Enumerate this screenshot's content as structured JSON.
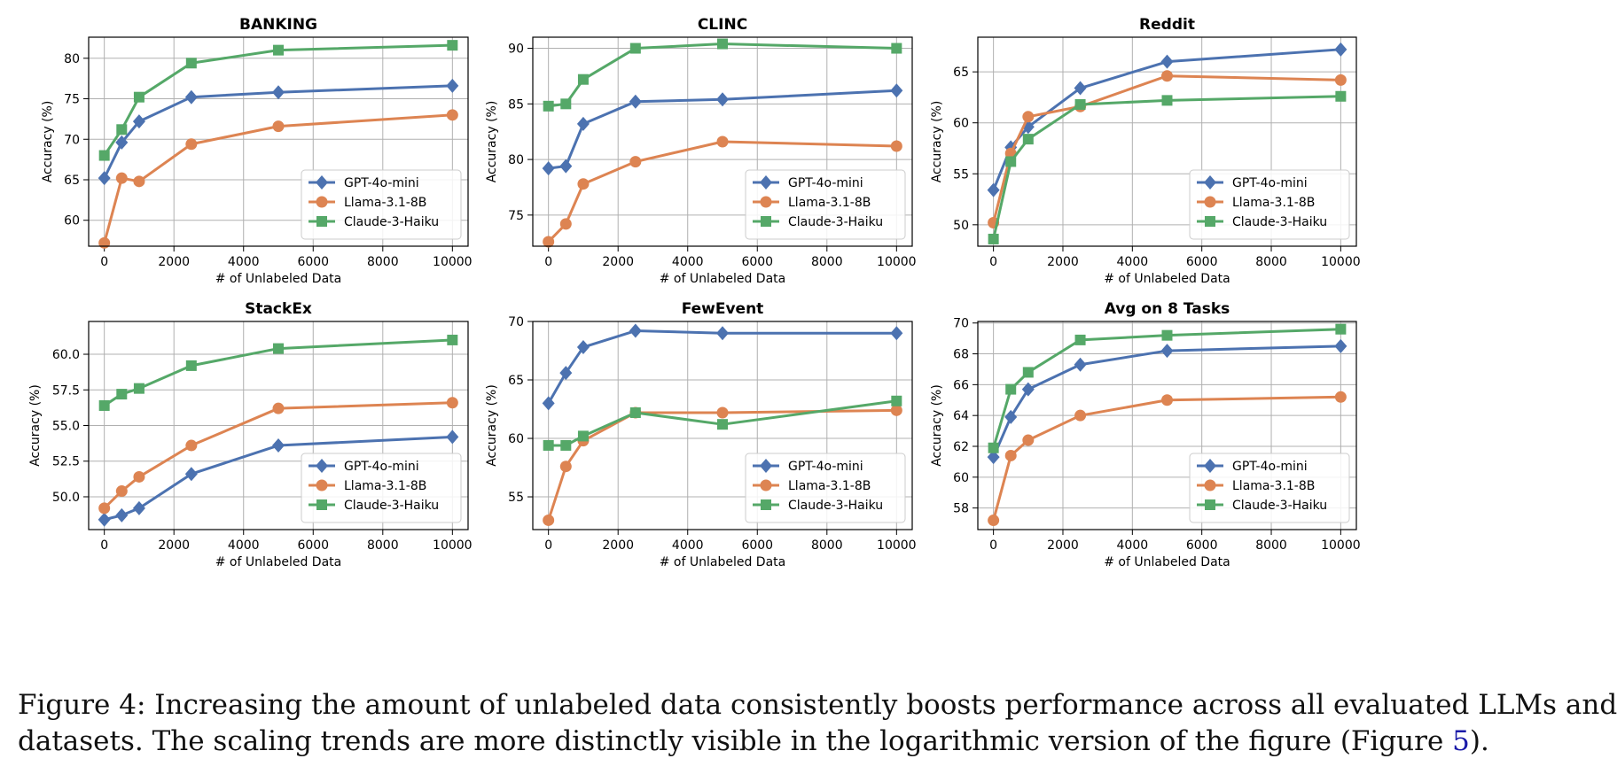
{
  "series_style": [
    {
      "name": "GPT-4o-mini",
      "color": "#4c72b0",
      "marker": "diamond"
    },
    {
      "name": "Llama-3.1-8B",
      "color": "#dd8452",
      "marker": "circle"
    },
    {
      "name": "Claude-3-Haiku",
      "color": "#55a868",
      "marker": "square"
    }
  ],
  "caption": {
    "line1": "Figure 4: Increasing the amount of unlabeled data consistently boosts performance across all evaluated LLMs and",
    "line2_pre": "datasets. The scaling trends are more distinctly visible in the logarithmic version of the figure (Figure ",
    "line2_ref": "5",
    "line2_post": ")."
  },
  "chart_data": [
    {
      "type": "line",
      "title": "BANKING",
      "xlabel": "# of Unlabeled Data",
      "ylabel": "Accuracy (%)",
      "x": [
        0,
        500,
        1000,
        2500,
        5000,
        10000
      ],
      "xlim": [
        -450,
        10450
      ],
      "ylim": [
        56.8,
        82.6
      ],
      "xticks": [
        0,
        2000,
        4000,
        6000,
        8000,
        10000
      ],
      "yticks": [
        60,
        65,
        70,
        75,
        80
      ],
      "ytick_labels": [
        "60",
        "65",
        "70",
        "75",
        "80"
      ],
      "grid": true,
      "legend": "lower-right",
      "series": [
        {
          "name": "GPT-4o-mini",
          "values": [
            65.2,
            69.6,
            72.2,
            75.2,
            75.8,
            76.6
          ]
        },
        {
          "name": "Llama-3.1-8B",
          "values": [
            57.2,
            65.2,
            64.8,
            69.4,
            71.6,
            73.0
          ]
        },
        {
          "name": "Claude-3-Haiku",
          "values": [
            68.0,
            71.2,
            75.2,
            79.4,
            81.0,
            81.6
          ]
        }
      ]
    },
    {
      "type": "line",
      "title": "CLINC",
      "xlabel": "# of Unlabeled Data",
      "ylabel": "Accuracy (%)",
      "x": [
        0,
        500,
        1000,
        2500,
        5000,
        10000
      ],
      "xlim": [
        -450,
        10450
      ],
      "ylim": [
        72.2,
        91.0
      ],
      "xticks": [
        0,
        2000,
        4000,
        6000,
        8000,
        10000
      ],
      "yticks": [
        75,
        80,
        85,
        90
      ],
      "ytick_labels": [
        "75",
        "80",
        "85",
        "90"
      ],
      "grid": true,
      "legend": "lower-right",
      "series": [
        {
          "name": "GPT-4o-mini",
          "values": [
            79.2,
            79.4,
            83.2,
            85.2,
            85.4,
            86.2
          ]
        },
        {
          "name": "Llama-3.1-8B",
          "values": [
            72.6,
            74.2,
            77.8,
            79.8,
            81.6,
            81.2
          ]
        },
        {
          "name": "Claude-3-Haiku",
          "values": [
            84.8,
            85.0,
            87.2,
            90.0,
            90.4,
            90.0
          ]
        }
      ]
    },
    {
      "type": "line",
      "title": "Reddit",
      "xlabel": "# of Unlabeled Data",
      "ylabel": "Accuracy (%)",
      "x": [
        0,
        500,
        1000,
        2500,
        5000,
        10000
      ],
      "xlim": [
        -450,
        10450
      ],
      "ylim": [
        47.9,
        68.4
      ],
      "xticks": [
        0,
        2000,
        4000,
        6000,
        8000,
        10000
      ],
      "yticks": [
        50,
        55,
        60,
        65
      ],
      "ytick_labels": [
        "50",
        "55",
        "60",
        "65"
      ],
      "grid": true,
      "legend": "lower-right",
      "series": [
        {
          "name": "GPT-4o-mini",
          "values": [
            53.4,
            57.6,
            59.6,
            63.4,
            66.0,
            67.2
          ]
        },
        {
          "name": "Llama-3.1-8B",
          "values": [
            50.2,
            57.0,
            60.6,
            61.6,
            64.6,
            64.2
          ]
        },
        {
          "name": "Claude-3-Haiku",
          "values": [
            48.6,
            56.2,
            58.4,
            61.8,
            62.2,
            62.6
          ]
        }
      ]
    },
    {
      "type": "line",
      "title": "StackEx",
      "xlabel": "# of Unlabeled Data",
      "ylabel": "Accuracy (%)",
      "x": [
        0,
        500,
        1000,
        2500,
        5000,
        10000
      ],
      "xlim": [
        -450,
        10450
      ],
      "ylim": [
        47.7,
        62.3
      ],
      "xticks": [
        0,
        2000,
        4000,
        6000,
        8000,
        10000
      ],
      "yticks": [
        50.0,
        52.5,
        55.0,
        57.5,
        60.0
      ],
      "ytick_labels": [
        "50.0",
        "52.5",
        "55.0",
        "57.5",
        "60.0"
      ],
      "grid": true,
      "legend": "lower-right",
      "series": [
        {
          "name": "GPT-4o-mini",
          "values": [
            48.4,
            48.7,
            49.2,
            51.6,
            53.6,
            54.2
          ]
        },
        {
          "name": "Llama-3.1-8B",
          "values": [
            49.2,
            50.4,
            51.4,
            53.6,
            56.2,
            56.6
          ]
        },
        {
          "name": "Claude-3-Haiku",
          "values": [
            56.4,
            57.2,
            57.6,
            59.2,
            60.4,
            61.0
          ]
        }
      ]
    },
    {
      "type": "line",
      "title": "FewEvent",
      "xlabel": "# of Unlabeled Data",
      "ylabel": "Accuracy (%)",
      "x": [
        0,
        500,
        1000,
        2500,
        5000,
        10000
      ],
      "xlim": [
        -450,
        10450
      ],
      "ylim": [
        52.2,
        70.0
      ],
      "xticks": [
        0,
        2000,
        4000,
        6000,
        8000,
        10000
      ],
      "yticks": [
        55,
        60,
        65,
        70
      ],
      "ytick_labels": [
        "55",
        "60",
        "65",
        "70"
      ],
      "grid": true,
      "legend": "lower-right",
      "series": [
        {
          "name": "GPT-4o-mini",
          "values": [
            63.0,
            65.6,
            67.8,
            69.2,
            69.0,
            69.0
          ]
        },
        {
          "name": "Llama-3.1-8B",
          "values": [
            53.0,
            57.6,
            59.8,
            62.2,
            62.2,
            62.4
          ]
        },
        {
          "name": "Claude-3-Haiku",
          "values": [
            59.4,
            59.4,
            60.2,
            62.2,
            61.2,
            63.2
          ]
        }
      ]
    },
    {
      "type": "line",
      "title": "Avg on 8 Tasks",
      "xlabel": "# of Unlabeled Data",
      "ylabel": "Accuracy (%)",
      "x": [
        0,
        500,
        1000,
        2500,
        5000,
        10000
      ],
      "xlim": [
        -450,
        10450
      ],
      "ylim": [
        56.6,
        70.1
      ],
      "xticks": [
        0,
        2000,
        4000,
        6000,
        8000,
        10000
      ],
      "yticks": [
        58,
        60,
        62,
        64,
        66,
        68,
        70
      ],
      "ytick_labels": [
        "58",
        "60",
        "62",
        "64",
        "66",
        "68",
        "70"
      ],
      "grid": true,
      "legend": "lower-right",
      "series": [
        {
          "name": "GPT-4o-mini",
          "values": [
            61.3,
            63.9,
            65.7,
            67.3,
            68.2,
            68.5
          ]
        },
        {
          "name": "Llama-3.1-8B",
          "values": [
            57.2,
            61.4,
            62.4,
            64.0,
            65.0,
            65.2
          ]
        },
        {
          "name": "Claude-3-Haiku",
          "values": [
            61.9,
            65.7,
            66.8,
            68.9,
            69.2,
            69.6
          ]
        }
      ]
    }
  ]
}
